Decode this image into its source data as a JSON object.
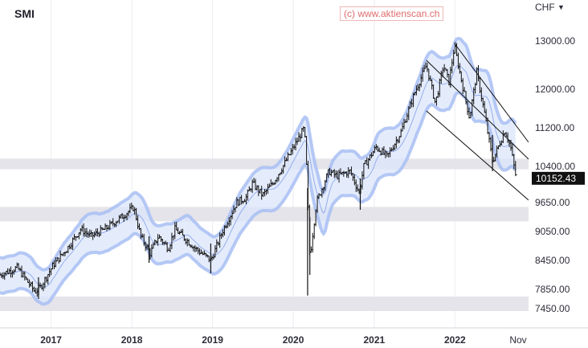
{
  "header": {
    "title": "SMI",
    "watermark": "(c) www.aktienscan.ch",
    "currency": "CHF",
    "currency_icon": "chevron-down-icon"
  },
  "colors": {
    "band_fill": "#dbe5fb",
    "band_edge": "#a9bff3",
    "band_mid": "#8ca6ea",
    "bar": "#111111",
    "zone": "#e4e4ea",
    "channel": "#111111",
    "price_tag": "#111111"
  },
  "chart_data": {
    "type": "ohlc",
    "title": "SMI",
    "currency": "CHF",
    "x_axis_labels": [
      "2017",
      "2018",
      "2019",
      "2020",
      "2021",
      "2022",
      "Nov"
    ],
    "y_axis_ticks": [
      13000,
      12000,
      11200,
      10400,
      9650,
      9050,
      8450,
      7850,
      7450
    ],
    "y_axis_tick_labels": [
      "13000.00",
      "12000.00",
      "11200.00",
      "10400.00",
      "9650.00",
      "9050.00",
      "8450.00",
      "7850.00",
      "7450.00"
    ],
    "ylim": [
      7050,
      13350
    ],
    "xlim": [
      "2016-05-15",
      "2022-11-30"
    ],
    "last_price": 10152.43,
    "last_price_label": "10152.43",
    "path_points": [
      [
        "2016-05-15",
        8150
      ],
      [
        "2016-08-01",
        8300
      ],
      [
        "2016-10-20",
        7800
      ],
      [
        "2016-11-15",
        7900
      ],
      [
        "2017-01-10",
        8350
      ],
      [
        "2017-03-15",
        8700
      ],
      [
        "2017-05-15",
        9100
      ],
      [
        "2017-07-01",
        8950
      ],
      [
        "2017-09-01",
        9100
      ],
      [
        "2017-11-01",
        9300
      ],
      [
        "2018-01-10",
        9550
      ],
      [
        "2018-02-10",
        8950
      ],
      [
        "2018-03-25",
        8600
      ],
      [
        "2018-05-01",
        8950
      ],
      [
        "2018-06-15",
        8700
      ],
      [
        "2018-07-15",
        9100
      ],
      [
        "2018-10-15",
        8700
      ],
      [
        "2018-12-25",
        8450
      ],
      [
        "2019-02-15",
        9050
      ],
      [
        "2019-04-20",
        9650
      ],
      [
        "2019-06-01",
        9750
      ],
      [
        "2019-07-01",
        10050
      ],
      [
        "2019-08-15",
        9800
      ],
      [
        "2019-10-01",
        10050
      ],
      [
        "2019-11-15",
        10400
      ],
      [
        "2020-01-15",
        10900
      ],
      [
        "2020-02-20",
        11200
      ],
      [
        "2020-03-01",
        10400
      ],
      [
        "2020-03-16",
        8500
      ],
      [
        "2020-04-15",
        9650
      ],
      [
        "2020-06-10",
        10300
      ],
      [
        "2020-07-15",
        10200
      ],
      [
        "2020-09-15",
        10300
      ],
      [
        "2020-10-25",
        9850
      ],
      [
        "2020-11-15",
        10400
      ],
      [
        "2021-01-10",
        10800
      ],
      [
        "2021-03-01",
        10600
      ],
      [
        "2021-05-01",
        11100
      ],
      [
        "2021-07-01",
        11900
      ],
      [
        "2021-08-25",
        12500
      ],
      [
        "2021-10-05",
        11700
      ],
      [
        "2021-11-10",
        12500
      ],
      [
        "2021-12-05",
        12150
      ],
      [
        "2021-12-30",
        12900
      ],
      [
        "2022-02-01",
        12150
      ],
      [
        "2022-03-08",
        11400
      ],
      [
        "2022-04-10",
        12350
      ],
      [
        "2022-05-15",
        11500
      ],
      [
        "2022-06-20",
        10500
      ],
      [
        "2022-08-15",
        11150
      ],
      [
        "2022-09-10",
        10800
      ],
      [
        "2022-10-01",
        10250
      ],
      [
        "2022-10-06",
        10152.43
      ]
    ],
    "extreme_bars": [
      [
        "2016-11-05",
        7650,
        8100
      ],
      [
        "2018-03-20",
        8400,
        8950
      ],
      [
        "2018-12-24",
        8180,
        8800
      ],
      [
        "2020-03-06",
        7720,
        9950
      ],
      [
        "2020-03-16",
        8150,
        9350
      ],
      [
        "2020-10-30",
        9500,
        10150
      ],
      [
        "2022-06-20",
        10300,
        11050
      ]
    ],
    "channel": {
      "upper": [
        [
          "2021-12-30",
          12950
        ],
        [
          "2022-11-30",
          10900
        ]
      ],
      "middle": [
        [
          "2021-08-25",
          12600
        ],
        [
          "2022-11-30",
          10550
        ]
      ],
      "lower": [
        [
          "2021-08-25",
          11550
        ],
        [
          "2022-11-30",
          9700
        ]
      ]
    },
    "zones": [
      [
        10340,
        10560
      ],
      [
        9260,
        9560
      ],
      [
        7400,
        7700
      ]
    ]
  }
}
